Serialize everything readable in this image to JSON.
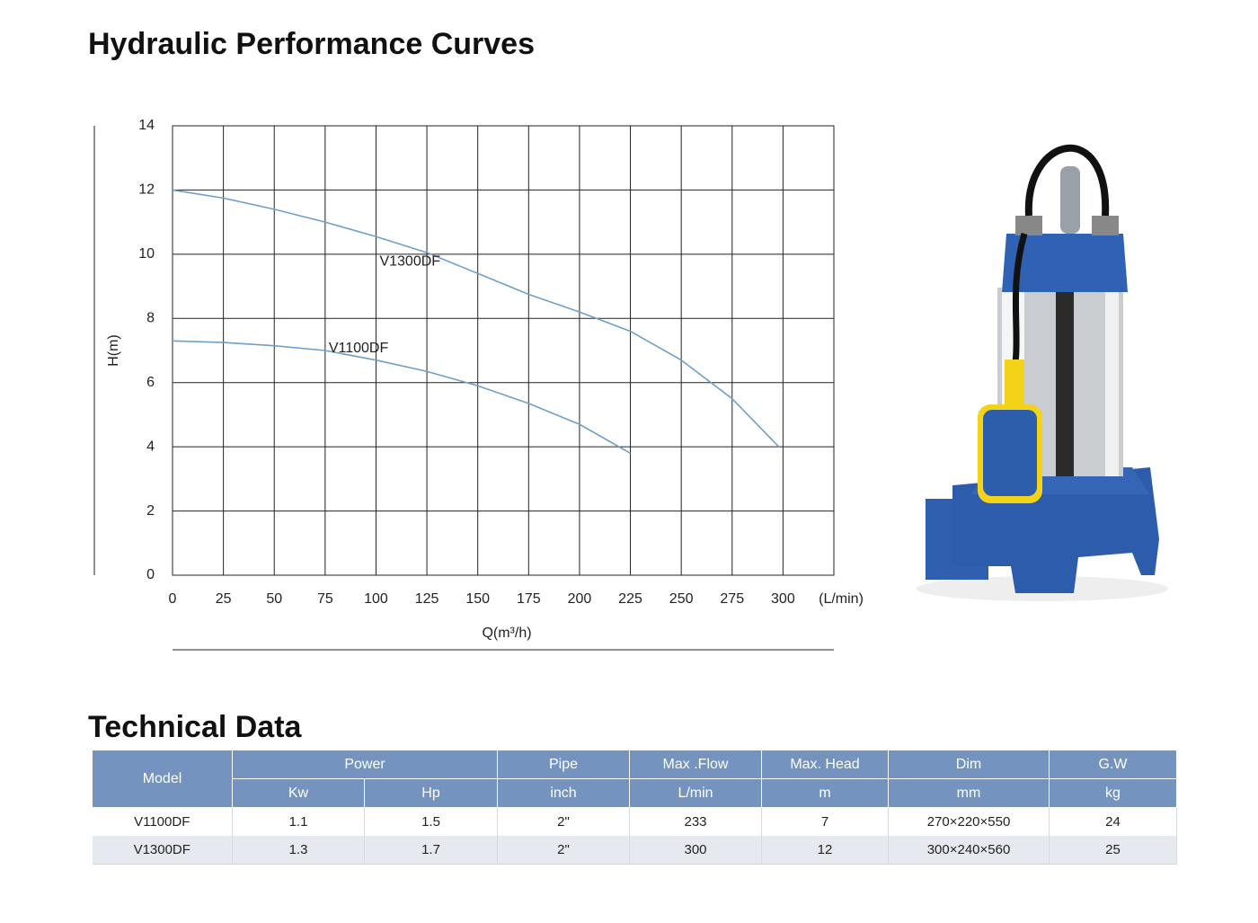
{
  "performance_title": "Hydraulic Performance Curves",
  "chart_data": {
    "type": "line",
    "x_label": "Q(m³/h)",
    "x_unit": "(L/min)",
    "y_label": "H(m)",
    "xlim": [
      0,
      325
    ],
    "xticks": [
      0,
      25,
      50,
      75,
      100,
      125,
      150,
      175,
      200,
      225,
      250,
      275,
      300
    ],
    "ylim": [
      0,
      14
    ],
    "yticks": [
      0,
      2,
      4,
      6,
      8,
      10,
      12,
      14
    ],
    "grid": true,
    "series": [
      {
        "name": "V1300DF",
        "color": "#6f9fc6",
        "x": [
          0,
          25,
          50,
          75,
          100,
          125,
          150,
          175,
          200,
          225,
          250,
          275,
          298
        ],
        "values": [
          12.0,
          11.75,
          11.4,
          11.0,
          10.55,
          10.05,
          9.4,
          8.75,
          8.2,
          7.6,
          6.7,
          5.5,
          4.0
        ]
      },
      {
        "name": "V1100DF",
        "color": "#6f9fc6",
        "x": [
          0,
          25,
          50,
          75,
          100,
          125,
          150,
          175,
          200,
          225
        ],
        "values": [
          7.3,
          7.25,
          7.15,
          7.0,
          6.7,
          6.35,
          5.9,
          5.35,
          4.7,
          3.8
        ]
      }
    ]
  },
  "technical_title": "Technical Data",
  "table": {
    "header": [
      "Model",
      "Power",
      "Pipe",
      "Max .Flow",
      "Max. Head",
      "Dim",
      "G.W"
    ],
    "units": [
      "Kw",
      "Hp",
      "inch",
      "L/min",
      "m",
      "mm",
      "kg"
    ],
    "rows": [
      [
        "V1100DF",
        1.1,
        1.5,
        "2\"",
        233,
        7,
        "270×220×550",
        24
      ],
      [
        "V1300DF",
        1.3,
        1.7,
        "2\"",
        300,
        12,
        "300×240×560",
        25
      ]
    ]
  }
}
